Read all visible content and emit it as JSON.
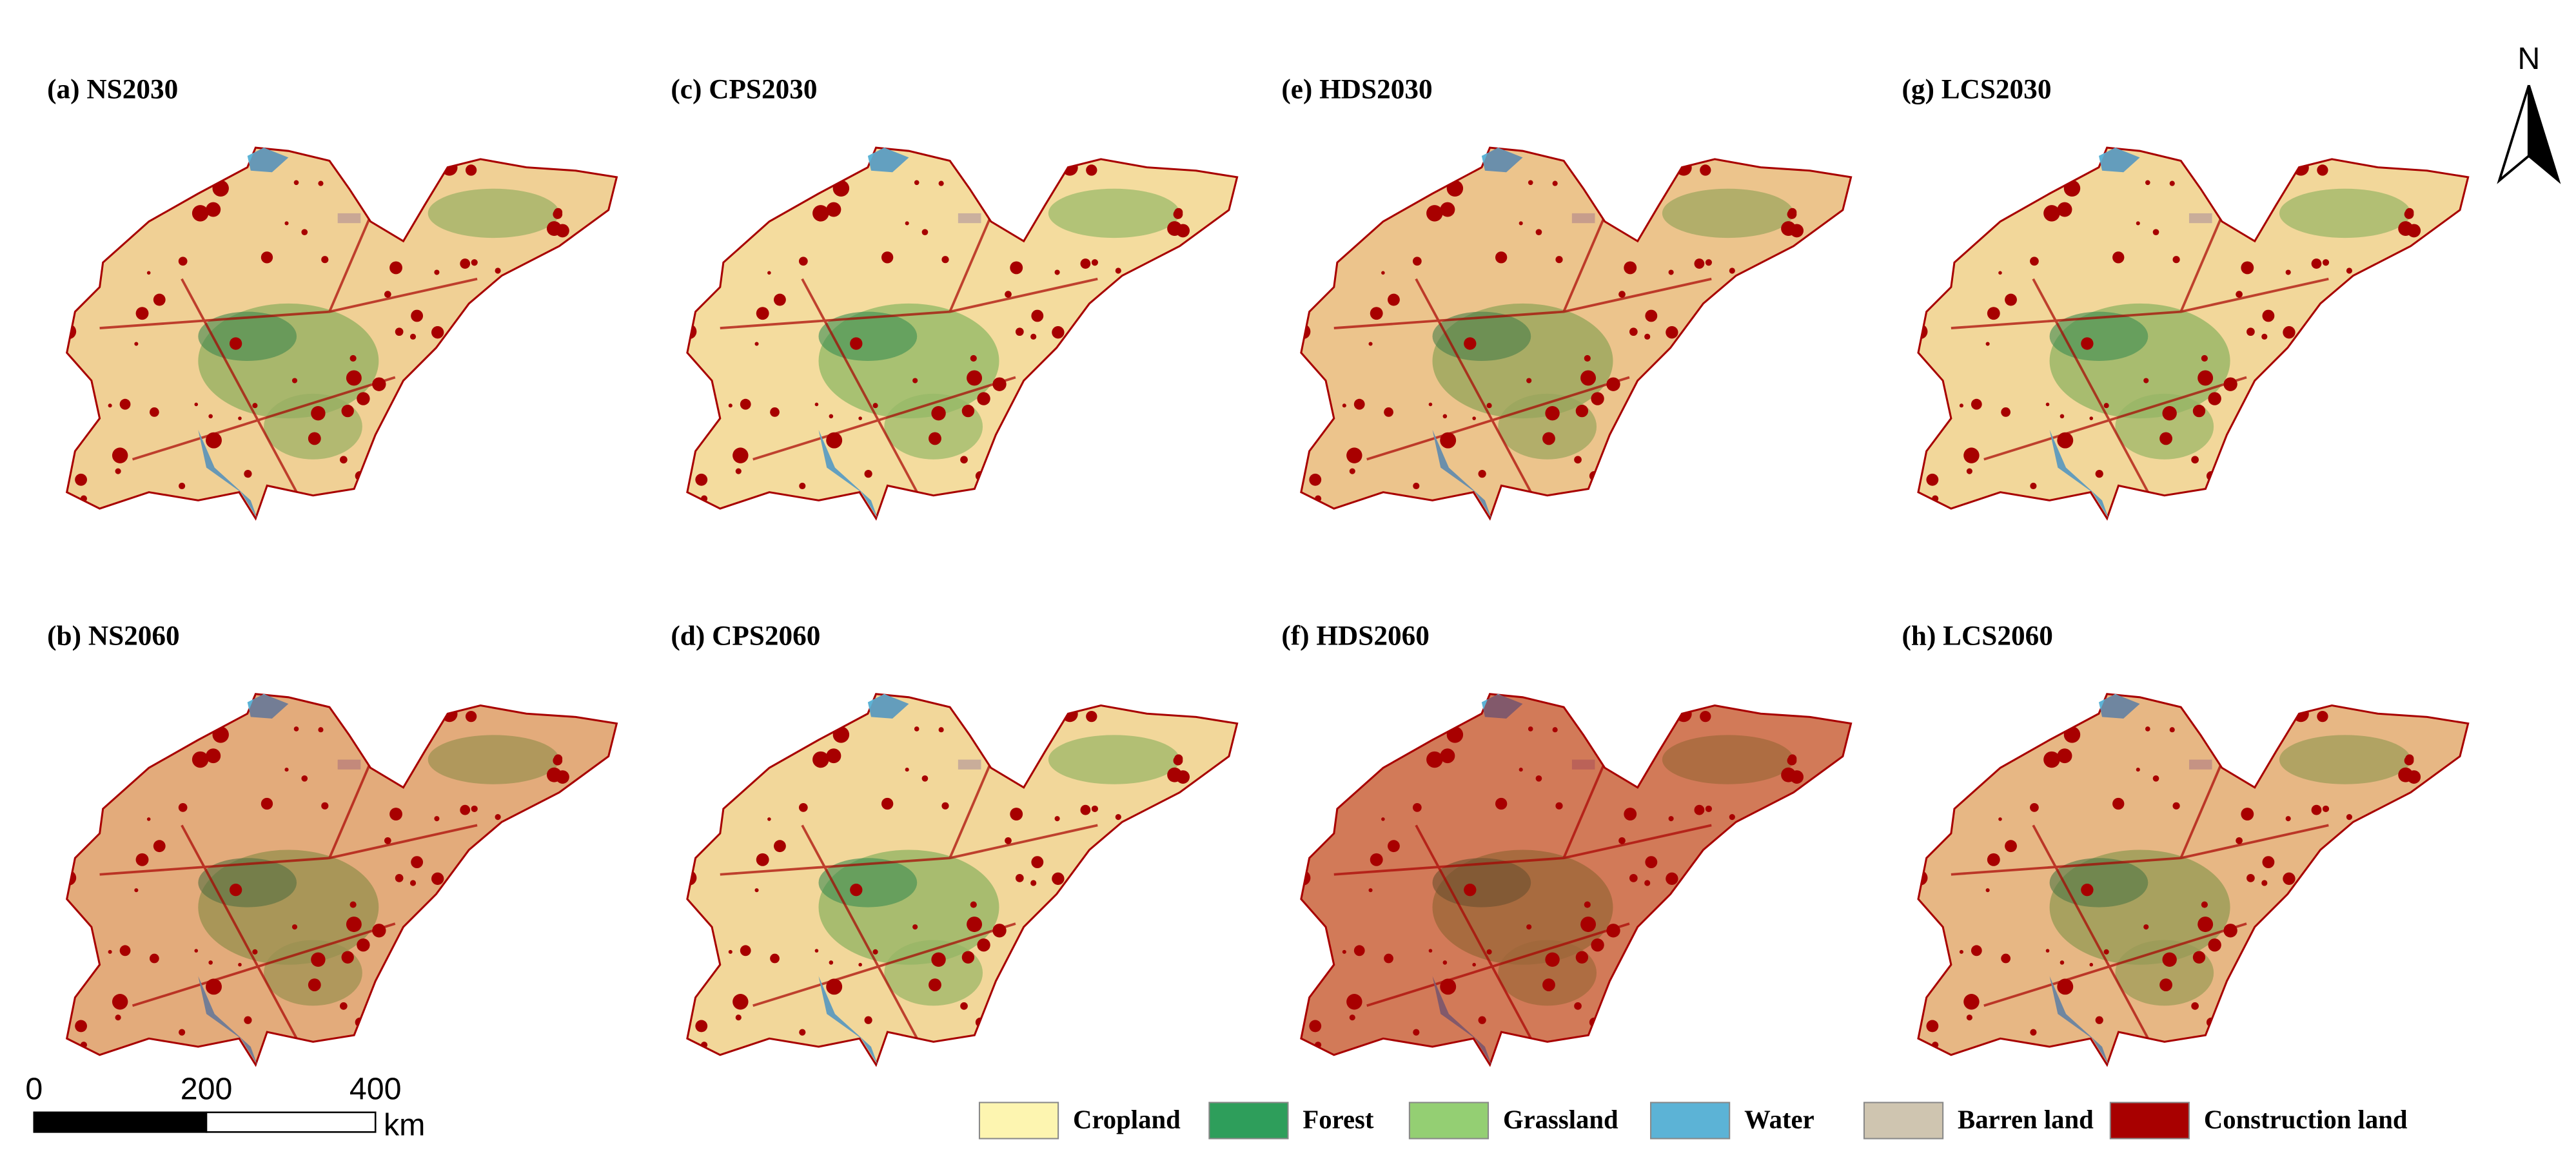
{
  "panels": [
    {
      "label": "(a) NS2030"
    },
    {
      "label": "(c) CPS2030"
    },
    {
      "label": "(e) HDS2030"
    },
    {
      "label": "(g) LCS2030"
    },
    {
      "label": "(b) NS2060"
    },
    {
      "label": "(d) CPS2060"
    },
    {
      "label": "(f) HDS2060"
    },
    {
      "label": "(h) LCS2060"
    }
  ],
  "legend": [
    {
      "label": "Cropland",
      "color": "#fdf5b0"
    },
    {
      "label": "Forest",
      "color": "#2e9e5b"
    },
    {
      "label": "Grassland",
      "color": "#94cf73"
    },
    {
      "label": "Water",
      "color": "#5cb3d6"
    },
    {
      "label": "Barren land",
      "color": "#cfc5b0"
    },
    {
      "label": "Construction land",
      "color": "#a80000"
    }
  ],
  "scale_bar": {
    "ticks": [
      0,
      200,
      400
    ],
    "unit": "km"
  },
  "north_arrow": {
    "label": "N"
  }
}
